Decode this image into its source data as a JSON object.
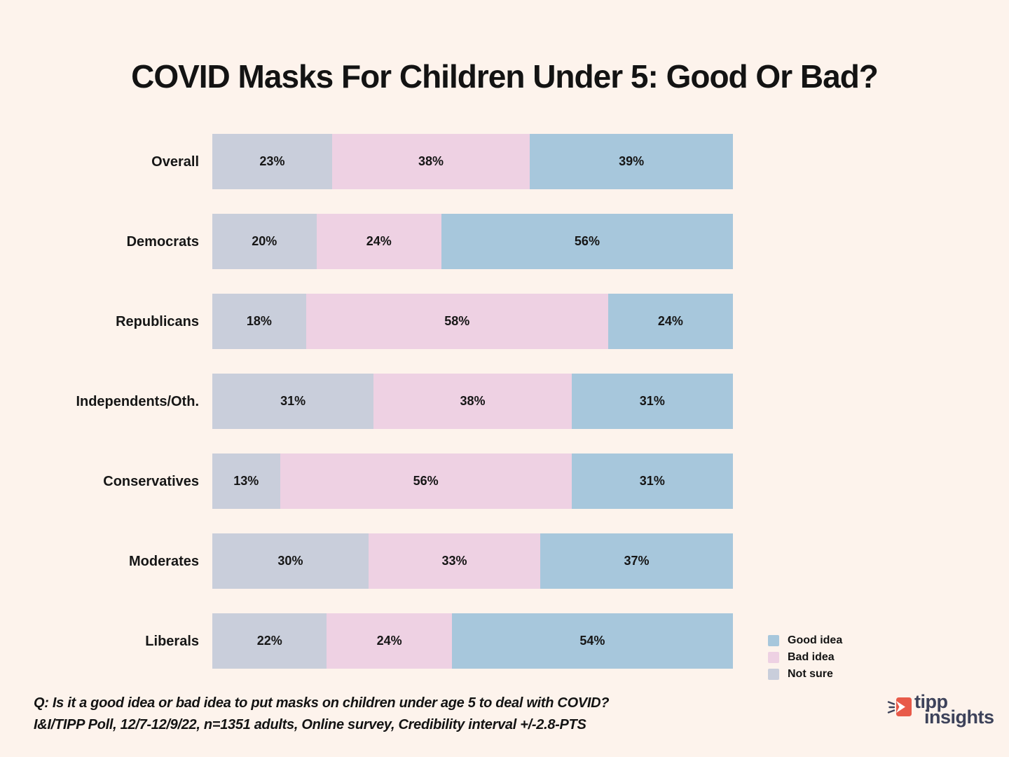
{
  "title": "COVID Masks For Children Under 5: Good Or Bad?",
  "chart_data": {
    "type": "bar",
    "orientation": "horizontal",
    "stacked": true,
    "value_suffix": "%",
    "xlim": [
      0,
      100
    ],
    "grid": false,
    "categories": [
      "Overall",
      "Democrats",
      "Republicans",
      "Independents/Oth.",
      "Conservatives",
      "Moderates",
      "Liberals"
    ],
    "series": [
      {
        "name": "Not sure",
        "key": "not-sure",
        "color": "#c9cedb",
        "values": [
          23,
          20,
          18,
          31,
          13,
          30,
          22
        ]
      },
      {
        "name": "Bad idea",
        "key": "bad-idea",
        "color": "#eed1e3",
        "values": [
          38,
          24,
          58,
          38,
          56,
          33,
          24
        ]
      },
      {
        "name": "Good idea",
        "key": "good-idea",
        "color": "#a7c7dc",
        "values": [
          39,
          56,
          24,
          31,
          31,
          37,
          54
        ]
      }
    ],
    "legend": [
      {
        "label": "Good idea",
        "color": "#a7c7dc"
      },
      {
        "label": "Bad idea",
        "color": "#eed1e3"
      },
      {
        "label": "Not sure",
        "color": "#c9cedb"
      }
    ],
    "legend_position": "bottom-right"
  },
  "footer": {
    "question": "Q: Is it a good idea or bad idea to put masks on children under age 5 to deal with COVID?",
    "source": "I&I/TIPP Poll, 12/7-12/9/22, n=1351 adults, Online survey, Credibility interval +/-2.8-PTS"
  },
  "logo": {
    "line1": "tipp",
    "line2": "insights",
    "accent_color": "#e85a49",
    "text_color": "#3d425a"
  },
  "colors": {
    "background": "#fdf3ec",
    "text": "#131313"
  }
}
